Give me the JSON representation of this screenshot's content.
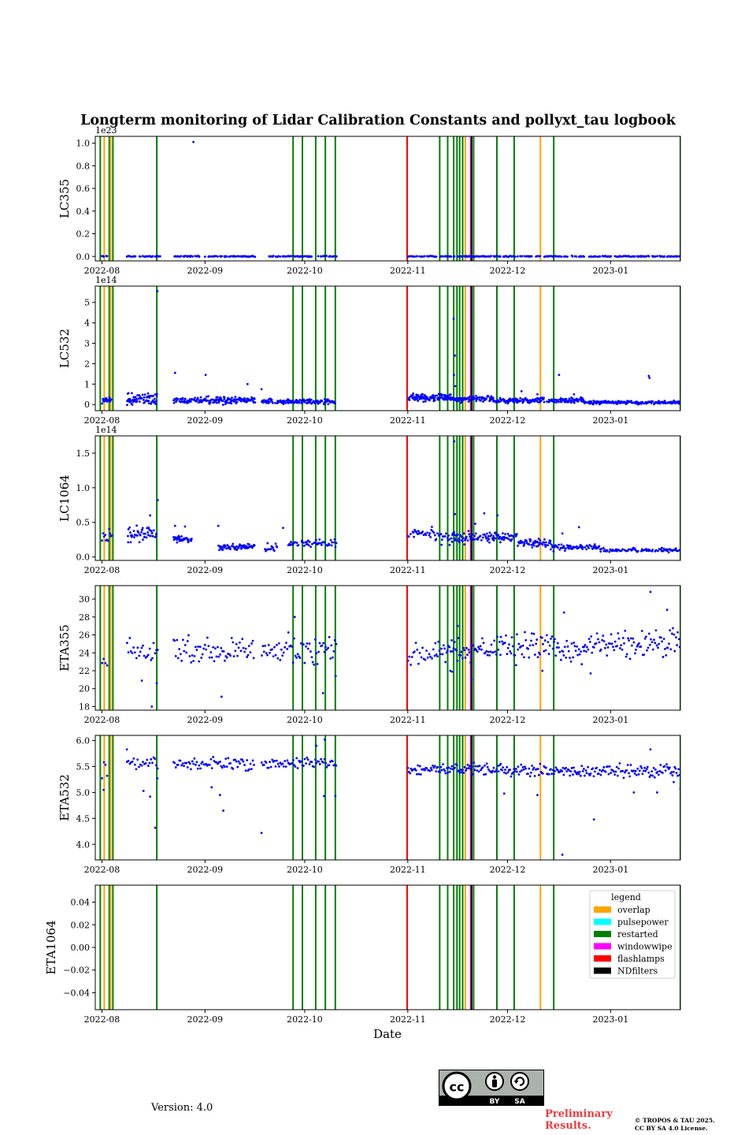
{
  "chart_data": {
    "type": "scatter",
    "title": "Longterm monitoring of Lidar Calibration Constants and pollyxt_tau logbook",
    "xlabel": "Date",
    "x_range_days": [
      -2,
      174
    ],
    "x_ticks": [
      {
        "day": 0,
        "label": "2022-08"
      },
      {
        "day": 31,
        "label": "2022-09"
      },
      {
        "day": 61,
        "label": "2022-10"
      },
      {
        "day": 92,
        "label": "2022-11"
      },
      {
        "day": 122,
        "label": "2022-12"
      },
      {
        "day": 153,
        "label": "2023-01"
      }
    ],
    "marker_color": "#0000ff",
    "events": [
      {
        "type": "restarted",
        "days": [
          -0.5,
          2.2,
          3.3,
          16.5,
          57.5,
          60.3,
          64.3,
          67.2,
          70.2,
          101.6,
          104.0,
          105.8,
          106.8,
          107.6,
          108.5,
          111.8,
          118.8,
          124.0,
          135.9,
          174.0
        ]
      },
      {
        "type": "overlap",
        "days": [
          0.7,
          2.6,
          109.3,
          131.9
        ]
      },
      {
        "type": "flashlamps",
        "days": [
          91.8
        ]
      },
      {
        "type": "windowwipe",
        "days": [
          110.9
        ]
      },
      {
        "type": "NDfilters",
        "days": [
          111.2
        ]
      }
    ],
    "event_colors": {
      "overlap": "#ffa500",
      "pulsepower": "#00ffff",
      "restarted": "#008000",
      "windowwipe": "#ff00ff",
      "flashlamps": "#ff0000",
      "NDfilters": "#000000"
    },
    "legend": {
      "title": "legend",
      "entries": [
        "overlap",
        "pulsepower",
        "restarted",
        "windowwipe",
        "flashlamps",
        "NDfilters"
      ],
      "position": "top-right of bottom panel"
    },
    "panels": [
      {
        "ylabel": "LC355",
        "offset_text": "1e23",
        "ylim": [
          -0.04,
          1.06
        ],
        "yticks": [
          0,
          0.2,
          0.4,
          0.6,
          0.8,
          1.0
        ],
        "tick_labels": [
          "0.0",
          "0.2",
          "0.4",
          "0.6",
          "0.8",
          "1.0"
        ],
        "segments": [
          {
            "start": 0,
            "end": 1.5,
            "base": 0,
            "spread": 0.003,
            "step": 0.25,
            "seed": 1
          },
          {
            "start": 7.5,
            "end": 17.5,
            "base": 0,
            "spread": 0.003,
            "step": 0.25,
            "seed": 2
          },
          {
            "start": 21.5,
            "end": 46,
            "base": 0,
            "spread": 0.003,
            "step": 0.25,
            "seed": 3
          },
          {
            "start": 50,
            "end": 63,
            "base": 0,
            "spread": 0.003,
            "step": 0.25,
            "seed": 4
          },
          {
            "start": 65,
            "end": 70.5,
            "base": 0,
            "spread": 0.003,
            "step": 0.25,
            "seed": 5
          },
          {
            "start": 92,
            "end": 145,
            "base": 0,
            "spread": 0.003,
            "step": 0.25,
            "seed": 6
          },
          {
            "start": 146.5,
            "end": 174,
            "base": 0,
            "spread": 0.003,
            "step": 0.25,
            "seed": 7
          }
        ],
        "points": [
          [
            27.5,
            1.01
          ],
          [
            60.3,
            0.0
          ],
          [
            68.5,
            0.0
          ],
          [
            103.5,
            0.0
          ],
          [
            108.0,
            0.0
          ]
        ]
      },
      {
        "ylabel": "LC532",
        "offset_text": "1e14",
        "ylim": [
          -0.3,
          5.8
        ],
        "yticks": [
          0,
          1,
          2,
          3,
          4,
          5
        ],
        "tick_labels": [
          "0",
          "1",
          "2",
          "3",
          "4",
          "5"
        ],
        "segments": [
          {
            "start": 0,
            "end": 2.8,
            "base": 0.22,
            "spread": 0.14,
            "step": 0.12,
            "seed": 11
          },
          {
            "start": 7.5,
            "end": 16.5,
            "base": 0.3,
            "spread": 0.25,
            "step": 0.1,
            "seed": 12
          },
          {
            "start": 21.5,
            "end": 46,
            "base": 0.2,
            "spread": 0.12,
            "step": 0.12,
            "seed": 13
          },
          {
            "start": 48,
            "end": 70.5,
            "base": 0.14,
            "spread": 0.08,
            "step": 0.12,
            "seed": 14
          },
          {
            "start": 92,
            "end": 105,
            "base": 0.35,
            "spread": 0.12,
            "step": 0.1,
            "seed": 15
          },
          {
            "start": 105,
            "end": 118,
            "base": 0.28,
            "spread": 0.1,
            "step": 0.12,
            "seed": 16
          },
          {
            "start": 118,
            "end": 145,
            "base": 0.2,
            "spread": 0.08,
            "step": 0.12,
            "seed": 17
          },
          {
            "start": 145,
            "end": 174,
            "base": 0.1,
            "spread": 0.05,
            "step": 0.12,
            "seed": 18
          }
        ],
        "points": [
          [
            16.7,
            5.55
          ],
          [
            22.0,
            1.55
          ],
          [
            31.2,
            1.45
          ],
          [
            43.8,
            1.0
          ],
          [
            48.0,
            0.75
          ],
          [
            105.8,
            4.2
          ],
          [
            106.2,
            2.4
          ],
          [
            105.9,
            1.45
          ],
          [
            106.3,
            0.9
          ],
          [
            126.2,
            0.65
          ],
          [
            131.0,
            0.5
          ],
          [
            137.5,
            1.45
          ],
          [
            142.0,
            0.5
          ],
          [
            164.5,
            1.4
          ],
          [
            164.7,
            1.3
          ]
        ]
      },
      {
        "ylabel": "LC1064",
        "offset_text": "1e14",
        "ylim": [
          -0.05,
          1.75
        ],
        "yticks": [
          0,
          0.5,
          1.0,
          1.5
        ],
        "tick_labels": [
          "0.0",
          "0.5",
          "1.0",
          "1.5"
        ],
        "segments": [
          {
            "start": 0,
            "end": 3.0,
            "base": 0.28,
            "spread": 0.1,
            "step": 0.3,
            "seed": 21
          },
          {
            "start": 7.5,
            "end": 16.5,
            "base": 0.34,
            "spread": 0.07,
            "step": 0.12,
            "seed": 22
          },
          {
            "start": 21.5,
            "end": 27,
            "base": 0.26,
            "spread": 0.03,
            "step": 0.12,
            "seed": 23
          },
          {
            "start": 35,
            "end": 46,
            "base": 0.14,
            "spread": 0.03,
            "step": 0.15,
            "seed": 24
          },
          {
            "start": 49,
            "end": 53,
            "base": 0.14,
            "spread": 0.04,
            "step": 0.2,
            "seed": 25
          },
          {
            "start": 56,
            "end": 70.5,
            "base": 0.2,
            "spread": 0.04,
            "step": 0.2,
            "seed": 26
          },
          {
            "start": 92,
            "end": 100,
            "base": 0.34,
            "spread": 0.05,
            "step": 0.2,
            "seed": 27
          },
          {
            "start": 100,
            "end": 112,
            "base": 0.28,
            "spread": 0.06,
            "step": 0.15,
            "seed": 28
          },
          {
            "start": 112,
            "end": 125,
            "base": 0.28,
            "spread": 0.05,
            "step": 0.15,
            "seed": 29
          },
          {
            "start": 125,
            "end": 135,
            "base": 0.2,
            "spread": 0.04,
            "step": 0.15,
            "seed": 30
          },
          {
            "start": 135,
            "end": 150,
            "base": 0.14,
            "spread": 0.03,
            "step": 0.15,
            "seed": 31
          },
          {
            "start": 150,
            "end": 174,
            "base": 0.1,
            "spread": 0.02,
            "step": 0.2,
            "seed": 32
          }
        ],
        "points": [
          [
            16.8,
            0.82
          ],
          [
            14.5,
            0.6
          ],
          [
            22.0,
            0.45
          ],
          [
            25.0,
            0.44
          ],
          [
            35.0,
            0.45
          ],
          [
            54.5,
            0.42
          ],
          [
            106.0,
            1.67
          ],
          [
            106.2,
            0.62
          ],
          [
            112.3,
            0.48
          ],
          [
            115.0,
            0.63
          ],
          [
            119.0,
            0.6
          ],
          [
            138.5,
            0.34
          ],
          [
            143.5,
            0.43
          ]
        ]
      },
      {
        "ylabel": "ETA355",
        "offset_text": "",
        "ylim": [
          17.6,
          31.5
        ],
        "yticks": [
          18,
          20,
          22,
          24,
          26,
          28,
          30
        ],
        "tick_labels": [
          "18",
          "20",
          "22",
          "24",
          "26",
          "28",
          "30"
        ],
        "segments": [
          {
            "start": 0,
            "end": 1.5,
            "base": 23.0,
            "spread": 0.6,
            "step": 0.5,
            "seed": 41
          },
          {
            "start": 7.5,
            "end": 17,
            "base": 24.0,
            "spread": 1.0,
            "step": 0.4,
            "seed": 42
          },
          {
            "start": 21.5,
            "end": 46,
            "base": 24.3,
            "spread": 1.1,
            "step": 0.35,
            "seed": 43
          },
          {
            "start": 48,
            "end": 70.5,
            "base": 24.2,
            "spread": 1.2,
            "step": 0.35,
            "seed": 44
          },
          {
            "start": 92,
            "end": 100,
            "base": 23.6,
            "spread": 1.0,
            "step": 0.4,
            "seed": 45
          },
          {
            "start": 100,
            "end": 120,
            "base": 24.2,
            "spread": 1.0,
            "step": 0.3,
            "seed": 46
          },
          {
            "start": 120,
            "end": 145,
            "base": 24.8,
            "spread": 1.2,
            "step": 0.3,
            "seed": 47
          },
          {
            "start": 145,
            "end": 174,
            "base": 25.0,
            "spread": 1.2,
            "step": 0.3,
            "seed": 48
          }
        ],
        "points": [
          [
            15.0,
            18.0
          ],
          [
            16.5,
            20.6
          ],
          [
            12.0,
            20.9
          ],
          [
            36.0,
            19.1
          ],
          [
            58.0,
            28.0
          ],
          [
            66.5,
            19.5
          ],
          [
            70.3,
            21.4
          ],
          [
            104.8,
            22.0
          ],
          [
            105.3,
            21.9
          ],
          [
            107.0,
            27.0
          ],
          [
            111.2,
            21.0
          ],
          [
            139.0,
            28.5
          ],
          [
            147.0,
            21.7
          ],
          [
            165.0,
            30.8
          ],
          [
            170.0,
            28.8
          ],
          [
            132.5,
            22.0
          ]
        ]
      },
      {
        "ylabel": "ETA532",
        "offset_text": "",
        "ylim": [
          3.7,
          6.1
        ],
        "yticks": [
          4.0,
          4.5,
          5.0,
          5.5,
          6.0
        ],
        "tick_labels": [
          "4.0",
          "4.5",
          "5.0",
          "5.5",
          "6.0"
        ],
        "segments": [
          {
            "start": 0,
            "end": 1.5,
            "base": 5.4,
            "spread": 0.15,
            "step": 0.5,
            "seed": 51
          },
          {
            "start": 7.5,
            "end": 17,
            "base": 5.55,
            "spread": 0.08,
            "step": 0.4,
            "seed": 52
          },
          {
            "start": 21.5,
            "end": 46,
            "base": 5.55,
            "spread": 0.08,
            "step": 0.35,
            "seed": 53
          },
          {
            "start": 48,
            "end": 70.5,
            "base": 5.55,
            "spread": 0.07,
            "step": 0.35,
            "seed": 54
          },
          {
            "start": 92,
            "end": 120,
            "base": 5.45,
            "spread": 0.07,
            "step": 0.3,
            "seed": 55
          },
          {
            "start": 120,
            "end": 174,
            "base": 5.42,
            "spread": 0.08,
            "step": 0.3,
            "seed": 56
          }
        ],
        "points": [
          [
            0.5,
            5.05
          ],
          [
            7.5,
            5.83
          ],
          [
            12.5,
            5.03
          ],
          [
            14.5,
            4.92
          ],
          [
            16.0,
            4.32
          ],
          [
            16.7,
            5.27
          ],
          [
            33.0,
            5.1
          ],
          [
            35.5,
            4.95
          ],
          [
            36.5,
            4.65
          ],
          [
            48.0,
            4.22
          ],
          [
            64.5,
            5.9
          ],
          [
            67.0,
            6.02
          ],
          [
            66.8,
            4.93
          ],
          [
            70.2,
            4.93
          ],
          [
            121.0,
            4.98
          ],
          [
            131.0,
            4.95
          ],
          [
            138.5,
            3.8
          ],
          [
            148.0,
            4.48
          ],
          [
            160.0,
            5.0
          ],
          [
            167.0,
            5.0
          ],
          [
            172.0,
            5.2
          ],
          [
            174.0,
            5.07
          ],
          [
            165.0,
            5.83
          ]
        ]
      },
      {
        "ylabel": "ETA1064",
        "offset_text": "",
        "ylim": [
          -0.055,
          0.055
        ],
        "yticks": [
          -0.04,
          -0.02,
          0.0,
          0.02,
          0.04
        ],
        "tick_labels": [
          "−0.04",
          "−0.02",
          "0.00",
          "0.02",
          "0.04"
        ],
        "segments": [],
        "points": []
      }
    ]
  },
  "footer": {
    "version": "Version: 4.0",
    "preliminary": [
      "Preliminary",
      "Results."
    ],
    "copyright": [
      "© TROPOS & TAU 2025.",
      "CC BY SA 4.0 License."
    ],
    "cc_badge": {
      "by": "BY",
      "sa": "SA"
    }
  }
}
